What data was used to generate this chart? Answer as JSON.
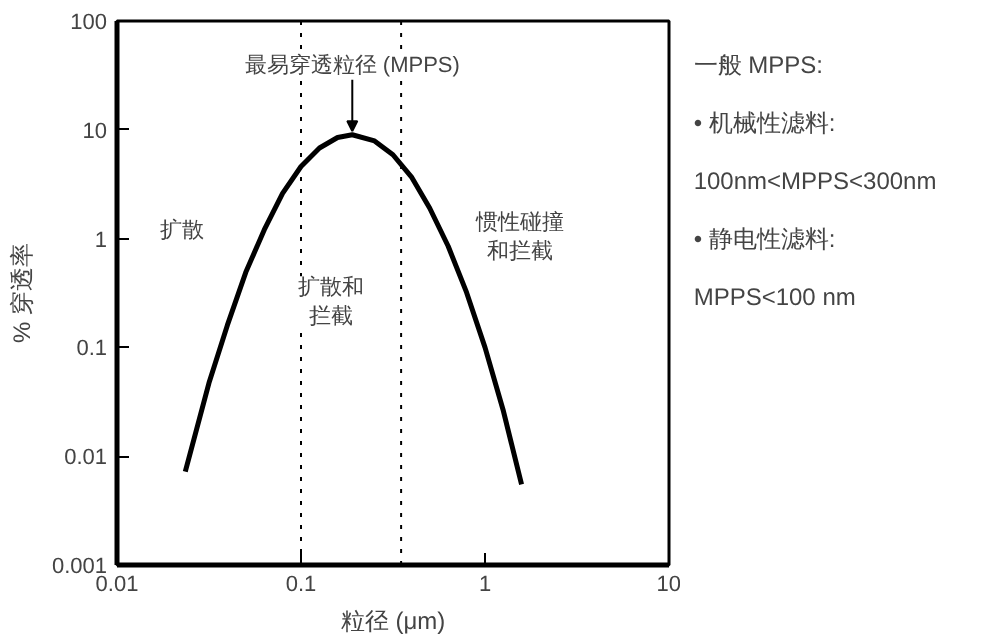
{
  "chart_data": {
    "type": "line",
    "xlabel": "粒径 (μm)",
    "ylabel": "% 穿透率",
    "log": "xy",
    "x": [
      0.0235,
      0.0316,
      0.0398,
      0.0501,
      0.0631,
      0.0794,
      0.1,
      0.126,
      0.158,
      0.19,
      0.251,
      0.316,
      0.398,
      0.501,
      0.631,
      0.794,
      1,
      1.259,
      1.58
    ],
    "series": [
      {
        "color": "#000000",
        "values": [
          0.0072,
          0.047,
          0.16,
          0.49,
          1.2,
          2.6,
          4.6,
          6.8,
          8.5,
          9,
          7.9,
          5.9,
          3.7,
          1.9,
          0.85,
          0.32,
          0.1,
          0.026,
          0.0055
        ]
      }
    ],
    "xlim": [
      0.01,
      10
    ],
    "ylim": [
      0.001,
      100
    ],
    "xticks": [
      0.01,
      0.1,
      1,
      10
    ],
    "yticks": [
      0.001,
      0.01,
      0.1,
      1,
      10,
      100
    ],
    "grid": false,
    "marker": "none",
    "line_style": "solid",
    "ref_lines": [
      {
        "axis": "x",
        "value": 0.1,
        "color": "#000000",
        "line_style": "dotted"
      },
      {
        "axis": "x",
        "value": 0.35,
        "color": "#000000",
        "line_style": "dotted"
      }
    ],
    "annotations": [
      {
        "text": "最易穿透粒径 (MPPS)",
        "x": 0.19,
        "y": 9
      },
      "扩散",
      "扩散和拦截",
      "惯性碰撞和拦截",
      "一般 MPPS:",
      "• 机械性滤料:",
      "100nm<MPPS<300nm",
      "• 静电性滤料:",
      "MPPS<100 nm"
    ]
  }
}
